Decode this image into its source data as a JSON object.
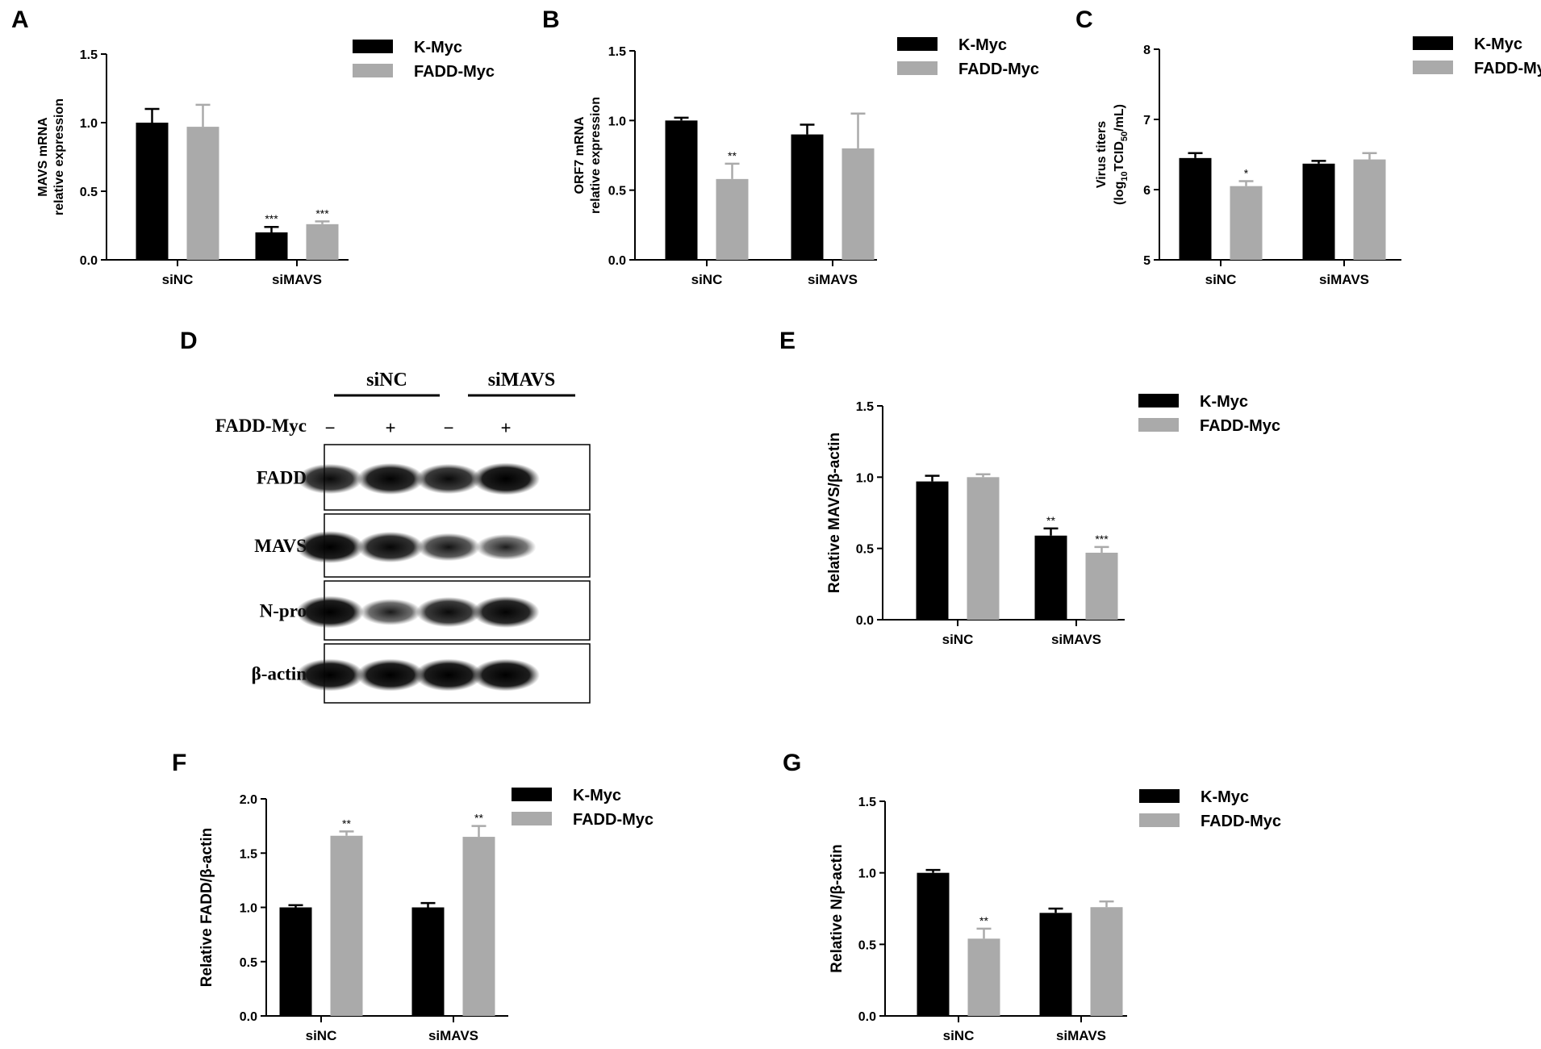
{
  "colors": {
    "k_myc": "#000000",
    "fadd_myc": "#aaaaaa"
  },
  "chart_data": [
    {
      "panel": "A",
      "type": "bar",
      "categories": [
        "siNC",
        "siMAVS"
      ],
      "ylabel": [
        "MAVS mRNA",
        "relative expression"
      ],
      "ylim": [
        0,
        1.5
      ],
      "yticks": [
        "0.0",
        "0.5",
        "1.0",
        "1.5"
      ],
      "series": [
        {
          "name": "K-Myc",
          "values": [
            1.0,
            0.2
          ],
          "errors": [
            0.1,
            0.04
          ],
          "sig": [
            "",
            "***"
          ]
        },
        {
          "name": "FADD-Myc",
          "values": [
            0.97,
            0.26
          ],
          "errors": [
            0.16,
            0.02
          ],
          "sig": [
            "",
            "***"
          ]
        }
      ],
      "legend": "top-right"
    },
    {
      "panel": "B",
      "type": "bar",
      "categories": [
        "siNC",
        "siMAVS"
      ],
      "ylabel": [
        "ORF7 mRNA",
        "relative expression"
      ],
      "ylim": [
        0,
        1.5
      ],
      "yticks": [
        "0.0",
        "0.5",
        "1.0",
        "1.5"
      ],
      "series": [
        {
          "name": "K-Myc",
          "values": [
            1.0,
            0.9
          ],
          "errors": [
            0.02,
            0.07
          ],
          "sig": [
            "",
            ""
          ]
        },
        {
          "name": "FADD-Myc",
          "values": [
            0.58,
            0.8
          ],
          "errors": [
            0.11,
            0.25
          ],
          "sig": [
            "**",
            ""
          ]
        }
      ],
      "legend": "top-right"
    },
    {
      "panel": "C",
      "type": "bar",
      "categories": [
        "siNC",
        "siMAVS"
      ],
      "ylabel": [
        "Virus titers",
        "(log10TCID50/mL)"
      ],
      "ylim": [
        5,
        8
      ],
      "yticks": [
        "5",
        "6",
        "7",
        "8"
      ],
      "series": [
        {
          "name": "K-Myc",
          "values": [
            6.45,
            6.37
          ],
          "errors": [
            0.07,
            0.04
          ],
          "sig": [
            "",
            ""
          ]
        },
        {
          "name": "FADD-Myc",
          "values": [
            6.05,
            6.43
          ],
          "errors": [
            0.07,
            0.09
          ],
          "sig": [
            "*",
            ""
          ]
        }
      ],
      "legend": "top-right"
    },
    {
      "panel": "E",
      "type": "bar",
      "categories": [
        "siNC",
        "siMAVS"
      ],
      "ylabel": [
        "Relative MAVS/β-actin"
      ],
      "ylim": [
        0,
        1.5
      ],
      "yticks": [
        "0.0",
        "0.5",
        "1.0",
        "1.5"
      ],
      "series": [
        {
          "name": "K-Myc",
          "values": [
            0.97,
            0.59
          ],
          "errors": [
            0.04,
            0.05
          ],
          "sig": [
            "",
            "**"
          ]
        },
        {
          "name": "FADD-Myc",
          "values": [
            1.0,
            0.47
          ],
          "errors": [
            0.02,
            0.04
          ],
          "sig": [
            "",
            "***"
          ]
        }
      ],
      "legend": "top-right"
    },
    {
      "panel": "F",
      "type": "bar",
      "categories": [
        "siNC",
        "siMAVS"
      ],
      "ylabel": [
        "Relative FADD/β-actin"
      ],
      "ylim": [
        0,
        2.0
      ],
      "yticks": [
        "0.0",
        "0.5",
        "1.0",
        "1.5",
        "2.0"
      ],
      "series": [
        {
          "name": "K-Myc",
          "values": [
            1.0,
            1.0
          ],
          "errors": [
            0.02,
            0.04
          ],
          "sig": [
            "",
            ""
          ]
        },
        {
          "name": "FADD-Myc",
          "values": [
            1.66,
            1.65
          ],
          "errors": [
            0.04,
            0.1
          ],
          "sig": [
            "**",
            "**"
          ]
        }
      ],
      "legend": "top-right"
    },
    {
      "panel": "G",
      "type": "bar",
      "categories": [
        "siNC",
        "siMAVS"
      ],
      "ylabel": [
        "Relative N/β-actin"
      ],
      "ylim": [
        0,
        1.5
      ],
      "yticks": [
        "0.0",
        "0.5",
        "1.0",
        "1.5"
      ],
      "series": [
        {
          "name": "K-Myc",
          "values": [
            1.0,
            0.72
          ],
          "errors": [
            0.02,
            0.03
          ],
          "sig": [
            "",
            ""
          ]
        },
        {
          "name": "FADD-Myc",
          "values": [
            0.54,
            0.76
          ],
          "errors": [
            0.07,
            0.04
          ],
          "sig": [
            "**",
            ""
          ]
        }
      ],
      "legend": "top-right"
    }
  ],
  "blot": {
    "panel": "D",
    "groups": [
      "siNC",
      "siMAVS"
    ],
    "treatment_label": "FADD-Myc",
    "treatment_marks": [
      "−",
      "+",
      "−",
      "+"
    ],
    "rows": [
      {
        "label": "FADD",
        "intensity": [
          0.85,
          0.95,
          0.85,
          1.0
        ]
      },
      {
        "label": "MAVS",
        "intensity": [
          1.0,
          0.9,
          0.7,
          0.55
        ]
      },
      {
        "label": "N-pro",
        "intensity": [
          1.0,
          0.6,
          0.85,
          0.95
        ]
      },
      {
        "label": "β-actin",
        "intensity": [
          1.0,
          1.0,
          1.0,
          1.0
        ]
      }
    ]
  }
}
